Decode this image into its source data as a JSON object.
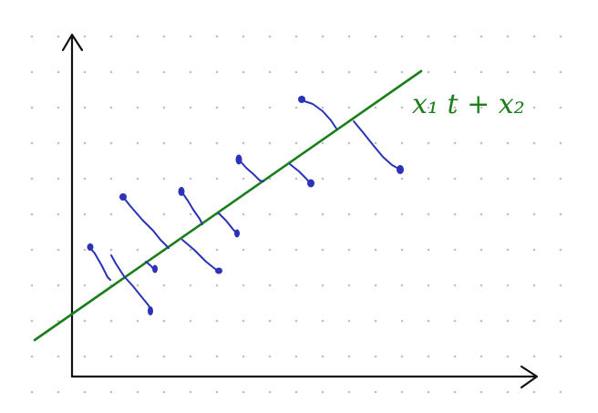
{
  "diagram": {
    "line_label": "x₁ t + x₂",
    "colors": {
      "background": "#ffffff",
      "grid_dots": "#bfbfbf",
      "axes": "#111111",
      "fit_line": "#1a7f1a",
      "points": "#2a33b8",
      "residuals": "#2a33b8"
    },
    "grid": true
  }
}
